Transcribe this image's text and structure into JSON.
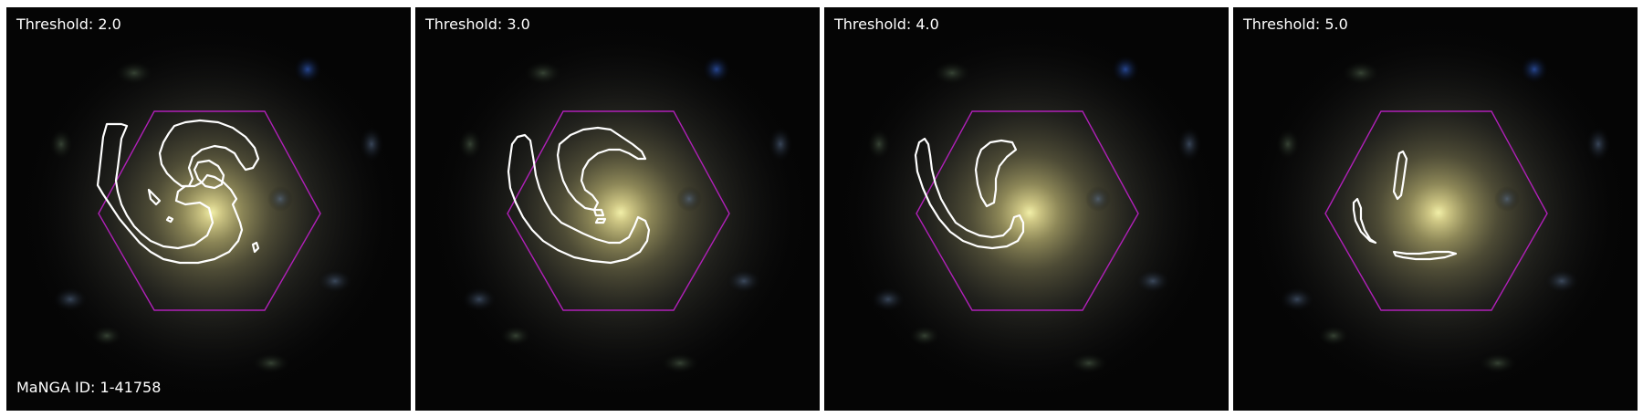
{
  "figure": {
    "galaxy_id_label": "MaNGA ID: 1-41758",
    "panels": [
      {
        "threshold_label": "Threshold: 2.0"
      },
      {
        "threshold_label": "Threshold: 3.0"
      },
      {
        "threshold_label": "Threshold: 4.0"
      },
      {
        "threshold_label": "Threshold: 5.0"
      }
    ]
  },
  "colors": {
    "background": "#050505",
    "galaxy_core": "#e8e59a",
    "galaxy_halo": "#6f6a4a",
    "ifu_hexagon": "#b020b8",
    "contour": "#ffffff",
    "panel_separator": "#ffffff"
  },
  "icons": {
    "ifu_footprint": "hexagon-outline",
    "spiral_arm_mask": "contour-outline"
  }
}
